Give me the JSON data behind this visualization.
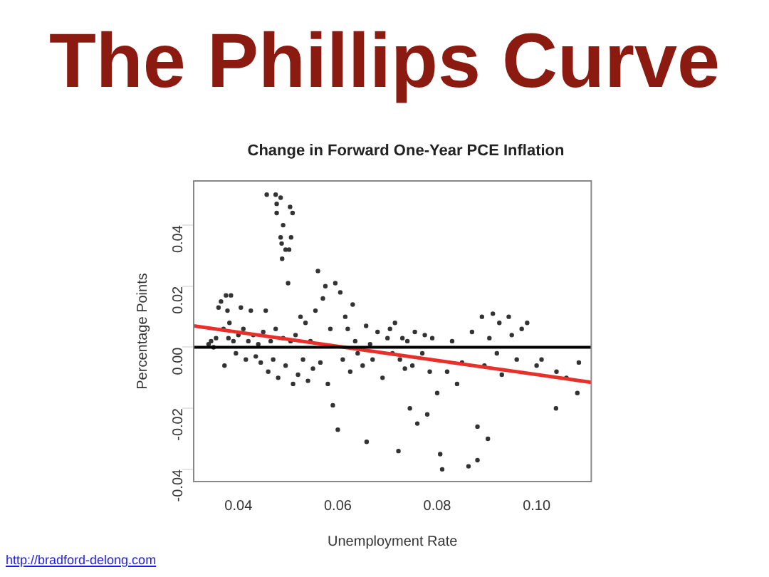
{
  "chart_data": {
    "type": "scatter",
    "title": "The Phillips Curve",
    "subtitle": "Change in Forward One-Year PCE Inflation",
    "xlabel": "Unemployment Rate",
    "ylabel": "Percentage Points",
    "xlim": [
      0.031,
      0.111
    ],
    "ylim": [
      -0.044,
      0.0545
    ],
    "xticks": [
      0.04,
      0.06,
      0.08,
      {
        "value": 0.1,
        "label": "0.10"
      }
    ],
    "yticks": [
      -0.04,
      -0.02,
      {
        "value": 0,
        "label": "0.00"
      },
      0.02,
      0.04
    ],
    "grid": false,
    "legend": false,
    "marker": "circle",
    "ref_lines": [
      {
        "axis": "y",
        "value": 0,
        "color": "#000000"
      }
    ],
    "series": [
      {
        "color": "#333333",
        "x": [
          0.0457,
          0.0475,
          0.0485,
          0.0477,
          0.0477,
          0.049,
          0.0485,
          0.0487,
          0.0495,
          0.0502,
          0.0488,
          0.0506,
          0.0509,
          0.0504,
          0.034,
          0.0345,
          0.035,
          0.0355,
          0.036,
          0.0365,
          0.037,
          0.0372,
          0.0375,
          0.0378,
          0.038,
          0.0382,
          0.0385,
          0.039,
          0.0395,
          0.04,
          0.0405,
          0.041,
          0.0415,
          0.042,
          0.0425,
          0.043,
          0.0435,
          0.044,
          0.0445,
          0.045,
          0.0455,
          0.046,
          0.0465,
          0.047,
          0.0475,
          0.048,
          0.049,
          0.0495,
          0.05,
          0.0505,
          0.051,
          0.0515,
          0.052,
          0.0525,
          0.053,
          0.0535,
          0.054,
          0.0545,
          0.055,
          0.0555,
          0.056,
          0.0565,
          0.057,
          0.0575,
          0.058,
          0.0585,
          0.059,
          0.0595,
          0.06,
          0.0605,
          0.061,
          0.0615,
          0.062,
          0.0625,
          0.063,
          0.0635,
          0.064,
          0.065,
          0.0657,
          0.0658,
          0.0665,
          0.067,
          0.068,
          0.069,
          0.07,
          0.0705,
          0.071,
          0.0715,
          0.0722,
          0.0725,
          0.073,
          0.0735,
          0.074,
          0.0745,
          0.075,
          0.0755,
          0.076,
          0.077,
          0.0775,
          0.078,
          0.0785,
          0.079,
          0.08,
          0.0806,
          0.081,
          0.082,
          0.083,
          0.084,
          0.085,
          0.0863,
          0.087,
          0.0881,
          0.0881,
          0.089,
          0.0895,
          0.0902,
          0.0905,
          0.0912,
          0.092,
          0.0925,
          0.093,
          0.0944,
          0.095,
          0.096,
          0.097,
          0.0981,
          0.1,
          0.101,
          0.1039,
          0.104,
          0.106,
          0.1082,
          0.1085
        ],
        "values": [
          0.05,
          0.05,
          0.049,
          0.047,
          0.044,
          0.04,
          0.036,
          0.034,
          0.032,
          0.032,
          0.029,
          0.036,
          0.044,
          0.046,
          0.001,
          0.002,
          0.0,
          0.003,
          0.013,
          0.015,
          0.006,
          -0.006,
          0.017,
          0.012,
          0.003,
          0.008,
          0.017,
          0.002,
          -0.002,
          0.004,
          0.013,
          0.006,
          -0.004,
          0.002,
          0.012,
          0.004,
          -0.003,
          0.001,
          -0.005,
          0.005,
          0.012,
          -0.008,
          0.002,
          -0.004,
          0.006,
          -0.01,
          0.003,
          -0.006,
          0.021,
          0.002,
          -0.012,
          0.004,
          -0.009,
          0.01,
          -0.004,
          0.008,
          -0.011,
          0.002,
          -0.007,
          0.012,
          0.025,
          -0.005,
          0.016,
          0.02,
          -0.012,
          0.006,
          -0.019,
          0.021,
          -0.027,
          0.018,
          -0.004,
          0.01,
          0.006,
          -0.008,
          0.014,
          0.002,
          -0.002,
          -0.006,
          0.007,
          -0.031,
          0.001,
          -0.004,
          0.005,
          -0.01,
          0.003,
          0.006,
          -0.002,
          0.008,
          -0.034,
          -0.004,
          0.003,
          -0.007,
          0.002,
          -0.02,
          -0.006,
          0.005,
          -0.025,
          -0.002,
          0.004,
          -0.022,
          -0.008,
          0.003,
          -0.015,
          -0.035,
          -0.04,
          -0.008,
          0.002,
          -0.012,
          -0.005,
          -0.039,
          0.005,
          -0.037,
          -0.026,
          0.01,
          -0.006,
          -0.03,
          0.003,
          0.011,
          -0.002,
          0.008,
          -0.009,
          0.01,
          0.004,
          -0.004,
          0.006,
          0.008,
          -0.006,
          -0.004,
          -0.02,
          -0.008,
          -0.01,
          -0.015,
          -0.005
        ]
      },
      {
        "type": "line",
        "color": "#e8302a",
        "marker": "none",
        "x": [
          0.031,
          0.111
        ],
        "values": [
          0.007,
          -0.0115
        ]
      }
    ],
    "annotations": [
      "http://bradford-delong.com"
    ]
  }
}
